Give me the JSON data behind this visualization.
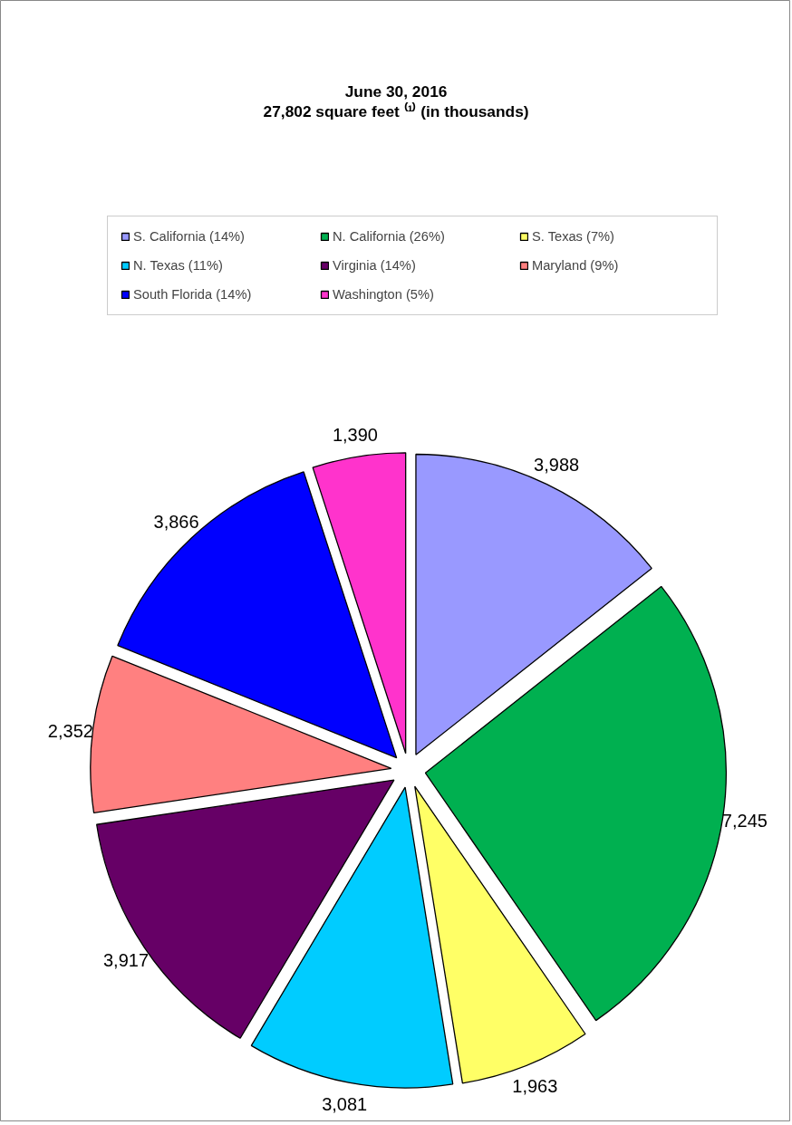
{
  "chart_data": {
    "type": "pie",
    "title": "June 30, 2016",
    "subtitle": "27,802 square feet ⁽¹⁾ (in thousands)",
    "categories": [
      "S. California (14%)",
      "N. California (26%)",
      "S. Texas (7%)",
      "N. Texas (11%)",
      "Virginia (14%)",
      "Maryland (9%)",
      "South Florida (14%)",
      "Washington (5%)"
    ],
    "values": [
      3988,
      7245,
      1963,
      3081,
      3917,
      2352,
      3866,
      1390
    ],
    "colors": [
      "#9999ff",
      "#00b050",
      "#ffff66",
      "#00ccff",
      "#660066",
      "#ff8080",
      "#0000ff",
      "#ff33cc"
    ],
    "value_labels": [
      "3,988",
      "7,245",
      "1,963",
      "3,081",
      "3,917",
      "2,352",
      "3,866",
      "1,390"
    ],
    "legend": "top"
  }
}
